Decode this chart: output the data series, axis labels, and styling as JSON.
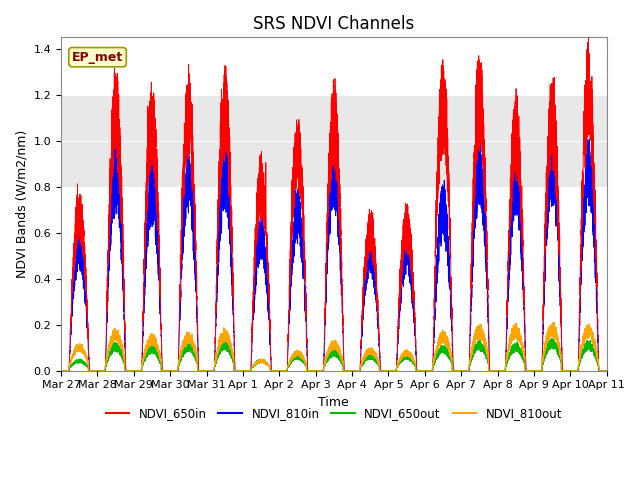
{
  "title": "SRS NDVI Channels",
  "xlabel": "Time",
  "ylabel": "NDVI Bands (W/m2/nm)",
  "ep_met_label": "EP_met",
  "ylim": [
    0,
    1.45
  ],
  "colors": {
    "NDVI_650in": "#ff0000",
    "NDVI_810in": "#0000ff",
    "NDVI_650out": "#00bb00",
    "NDVI_810out": "#ffa500"
  },
  "legend_labels": [
    "NDVI_650in",
    "NDVI_810in",
    "NDVI_650out",
    "NDVI_810out"
  ],
  "shade_band": [
    0.8,
    1.2
  ],
  "shade_color": "#e8e8e8",
  "x_tick_labels": [
    "Mar 27",
    "Mar 28",
    "Mar 29",
    "Mar 30",
    "Mar 31",
    "Apr 1",
    "Apr 2",
    "Apr 3",
    "Apr 4",
    "Apr 5",
    "Apr 6",
    "Apr 7",
    "Apr 8",
    "Apr 9",
    "Apr 10",
    "Apr 11"
  ],
  "daily_peaks_650in": [
    0.8,
    1.32,
    1.26,
    1.31,
    1.34,
    0.95,
    1.13,
    1.26,
    0.72,
    0.74,
    1.35,
    1.38,
    1.22,
    1.3,
    1.4
  ],
  "daily_peaks_810in": [
    0.63,
    0.98,
    0.91,
    0.97,
    1.0,
    0.68,
    0.8,
    0.99,
    0.6,
    0.6,
    0.82,
    1.01,
    0.95,
    1.04,
    1.03
  ],
  "daily_peaks_650out": [
    0.05,
    0.12,
    0.11,
    0.12,
    0.13,
    0.05,
    0.07,
    0.09,
    0.07,
    0.07,
    0.11,
    0.13,
    0.12,
    0.14,
    0.13
  ],
  "daily_peaks_810out": [
    0.12,
    0.18,
    0.16,
    0.17,
    0.18,
    0.05,
    0.09,
    0.13,
    0.1,
    0.09,
    0.17,
    0.2,
    0.2,
    0.21,
    0.2
  ],
  "background_color": "#ffffff",
  "title_fontsize": 12,
  "axis_label_fontsize": 9,
  "tick_fontsize": 8
}
